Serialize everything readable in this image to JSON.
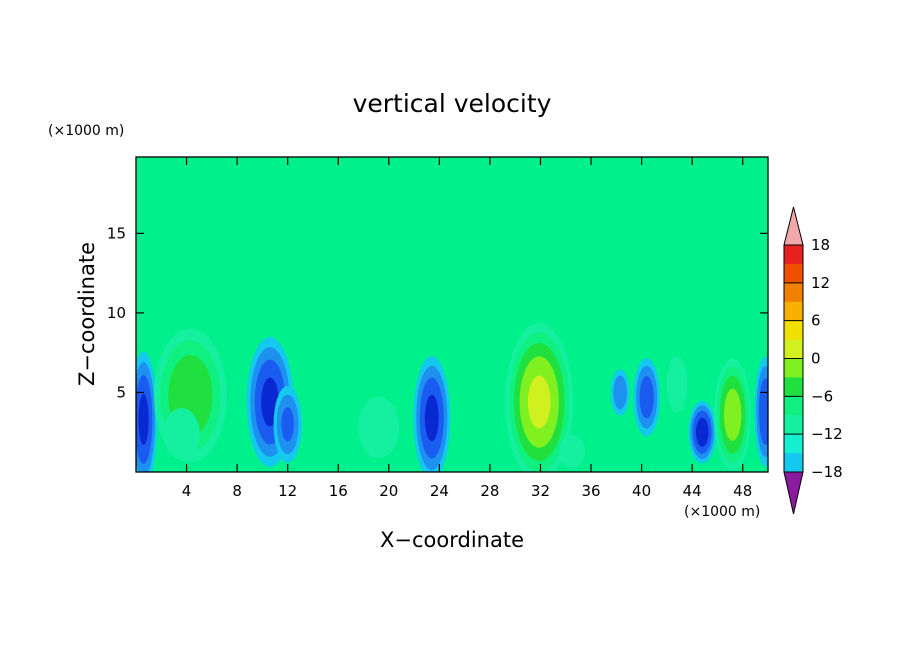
{
  "chart_data": {
    "type": "heatmap",
    "title": "vertical velocity",
    "xlabel": "X−coordinate",
    "ylabel": "Z−coordinate",
    "x_unit": "(×1000 m)",
    "y_unit": "(×1000 m)",
    "xlim": [
      0,
      50
    ],
    "ylim": [
      0,
      19.8
    ],
    "x_ticks": [
      4,
      8,
      12,
      16,
      20,
      24,
      28,
      32,
      36,
      40,
      44,
      48
    ],
    "y_ticks": [
      5,
      10,
      15
    ],
    "colorbar": {
      "range": [
        -21,
        21
      ],
      "step": 3,
      "tick_labels": [
        18,
        12,
        6,
        0,
        -6,
        -12,
        -18
      ],
      "extend": "both"
    },
    "features": [
      {
        "x": 0.6,
        "z": 3.3,
        "sx": 0.55,
        "sz": 2.2,
        "value": -12
      },
      {
        "x": 4.3,
        "z": 4.8,
        "sx": 1.5,
        "sz": 2.2,
        "value": 11
      },
      {
        "x": 3.6,
        "z": 2.4,
        "sx": 0.9,
        "sz": 1.0,
        "value": 5
      },
      {
        "x": 10.6,
        "z": 4.4,
        "sx": 0.95,
        "sz": 2.1,
        "value": -12
      },
      {
        "x": 12.0,
        "z": 3.0,
        "sx": 0.6,
        "sz": 1.3,
        "value": -9
      },
      {
        "x": 19.2,
        "z": 2.8,
        "sx": 1.0,
        "sz": 1.2,
        "value": 5
      },
      {
        "x": 23.4,
        "z": 3.4,
        "sx": 0.75,
        "sz": 2.0,
        "value": -12
      },
      {
        "x": 31.9,
        "z": 4.4,
        "sx": 1.35,
        "sz": 2.5,
        "value": 15
      },
      {
        "x": 34.5,
        "z": 1.3,
        "sx": 0.7,
        "sz": 0.7,
        "value": 4
      },
      {
        "x": 38.3,
        "z": 5.0,
        "sx": 0.4,
        "sz": 0.8,
        "value": -8
      },
      {
        "x": 40.4,
        "z": 4.7,
        "sx": 0.55,
        "sz": 1.3,
        "value": -10
      },
      {
        "x": 42.8,
        "z": 5.5,
        "sx": 0.55,
        "sz": 1.2,
        "value": 4
      },
      {
        "x": 44.8,
        "z": 2.5,
        "sx": 0.55,
        "sz": 1.0,
        "value": -13
      },
      {
        "x": 47.2,
        "z": 3.6,
        "sx": 0.75,
        "sz": 1.8,
        "value": 13
      },
      {
        "x": 49.8,
        "z": 3.8,
        "sx": 0.45,
        "sz": 1.8,
        "value": -11
      }
    ]
  },
  "colors": {
    "palette": [
      "#8c1aa0",
      "#4a26b8",
      "#1e1ca8",
      "#0a28d2",
      "#1a5cf0",
      "#1e90f0",
      "#14c8f0",
      "#14f0d0",
      "#14f0a0",
      "#10f080",
      "#20e040",
      "#80f020",
      "#d0f020",
      "#f0e000",
      "#f8b000",
      "#f08000",
      "#f05000",
      "#e82020",
      "#f0a8a8"
    ],
    "background": "#00f08c"
  }
}
